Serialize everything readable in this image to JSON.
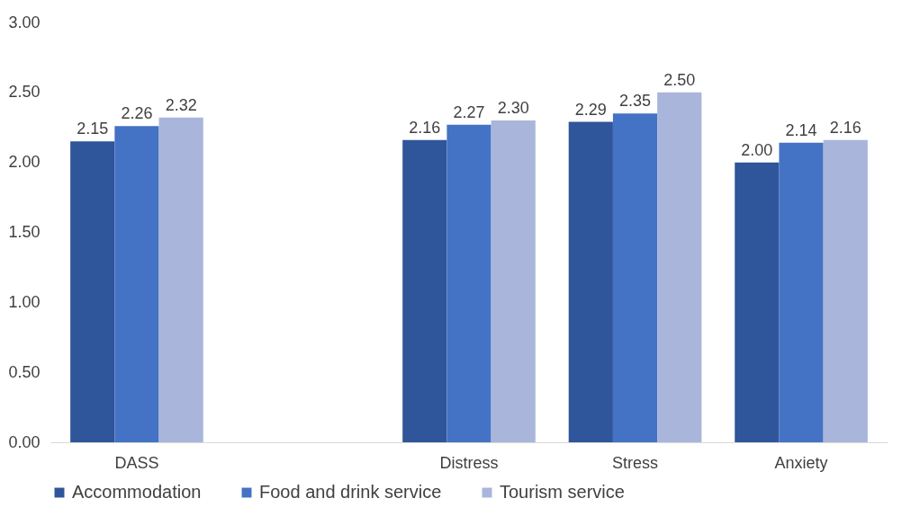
{
  "chart_data": {
    "type": "bar",
    "categories": [
      "DASS",
      null,
      "Distress",
      "Stress",
      "Anxiety"
    ],
    "series": [
      {
        "name": "Accommodation",
        "color": "#2f559a",
        "values": [
          2.15,
          null,
          2.16,
          2.29,
          2.0
        ],
        "value_labels": [
          "2.15",
          null,
          "2.16",
          "2.29",
          "2.00"
        ]
      },
      {
        "name": "Food and drink service",
        "color": "#4472c4",
        "values": [
          2.26,
          null,
          2.27,
          2.35,
          2.14
        ],
        "value_labels": [
          "2.26",
          null,
          "2.27",
          "2.35",
          "2.14"
        ]
      },
      {
        "name": "Tourism service",
        "color": "#a9b5db",
        "values": [
          2.32,
          null,
          2.3,
          2.5,
          2.16
        ],
        "value_labels": [
          "2.32",
          null,
          "2.30",
          "2.50",
          "2.16"
        ]
      }
    ],
    "ylim": [
      0,
      3
    ],
    "yticks": [
      {
        "value": 0,
        "label": "0.00"
      },
      {
        "value": 0.5,
        "label": "0.50"
      },
      {
        "value": 1,
        "label": "1.00"
      },
      {
        "value": 1.5,
        "label": "1.50"
      },
      {
        "value": 2,
        "label": "2.00"
      },
      {
        "value": 2.5,
        "label": "2.50"
      },
      {
        "value": 3,
        "label": "3.00"
      }
    ],
    "grid": false,
    "legend": "bottom"
  }
}
